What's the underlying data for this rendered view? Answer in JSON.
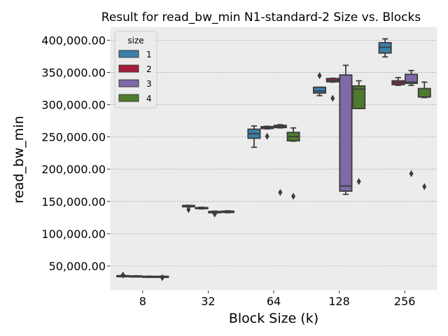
{
  "chart_data": {
    "type": "box",
    "title": "Result for read_bw_min N1-standard-2 Size vs. Blocks",
    "xlabel": "Block Size (k)",
    "ylabel": "read_bw_min",
    "categories": [
      "8",
      "32",
      "64",
      "128",
      "256"
    ],
    "yticks": [
      50000,
      100000,
      150000,
      200000,
      250000,
      300000,
      350000,
      400000
    ],
    "ytick_labels": [
      "50,000.00",
      "100,000.00",
      "150,000.00",
      "200,000.00",
      "250,000.00",
      "300,000.00",
      "350,000.00",
      "400,000.00"
    ],
    "ylim": [
      12000,
      421000
    ],
    "grid": true,
    "legend": {
      "title": "size",
      "position": "top-left"
    },
    "series": [
      {
        "name": "1",
        "color": "#3a7fa8",
        "boxes": [
          {
            "category": "8",
            "min": 33500,
            "q1": 34000,
            "median": 34500,
            "q3": 35000,
            "max": 35500,
            "outliers": [
              36000
            ]
          },
          {
            "category": "32",
            "min": 141500,
            "q1": 141800,
            "median": 142300,
            "q3": 143800,
            "max": 144000,
            "outliers": [
              137500
            ]
          },
          {
            "category": "64",
            "min": 234000,
            "q1": 248000,
            "median": 255000,
            "q3": 262000,
            "max": 267000,
            "outliers": []
          },
          {
            "category": "128",
            "min": 314000,
            "q1": 318000,
            "median": 321000,
            "q3": 327000,
            "max": 327000,
            "outliers": [
              345000
            ]
          },
          {
            "category": "256",
            "min": 374000,
            "q1": 380000,
            "median": 389000,
            "q3": 396000,
            "max": 402000,
            "outliers": []
          }
        ]
      },
      {
        "name": "2",
        "color": "#a31d3a",
        "boxes": [
          {
            "category": "8",
            "min": 33500,
            "q1": 33800,
            "median": 34200,
            "q3": 34600,
            "max": 34800,
            "outliers": []
          },
          {
            "category": "32",
            "min": 138500,
            "q1": 139000,
            "median": 139500,
            "q3": 140500,
            "max": 141000,
            "outliers": []
          },
          {
            "category": "64",
            "min": 262500,
            "q1": 263000,
            "median": 264500,
            "q3": 266000,
            "max": 266500,
            "outliers": [
              251000
            ]
          },
          {
            "category": "128",
            "min": 335000,
            "q1": 335500,
            "median": 337000,
            "q3": 340500,
            "max": 341000,
            "outliers": [
              310000
            ]
          },
          {
            "category": "256",
            "min": 330000,
            "q1": 331000,
            "median": 334000,
            "q3": 337000,
            "max": 342000,
            "outliers": []
          }
        ]
      },
      {
        "name": "3",
        "color": "#7e6aa8",
        "boxes": [
          {
            "category": "8",
            "min": 32500,
            "q1": 33000,
            "median": 33500,
            "q3": 34000,
            "max": 34200,
            "outliers": []
          },
          {
            "category": "32",
            "min": 132000,
            "q1": 132500,
            "median": 133500,
            "q3": 134500,
            "max": 135000,
            "outliers": [
              130500
            ]
          },
          {
            "category": "64",
            "min": 264000,
            "q1": 264500,
            "median": 266000,
            "q3": 268000,
            "max": 269000,
            "outliers": [
              164000
            ]
          },
          {
            "category": "128",
            "min": 161000,
            "q1": 166000,
            "median": 174000,
            "q3": 346000,
            "max": 361000,
            "outliers": []
          },
          {
            "category": "256",
            "min": 330000,
            "q1": 333000,
            "median": 335000,
            "q3": 347000,
            "max": 353000,
            "outliers": [
              193000
            ]
          }
        ]
      },
      {
        "name": "4",
        "color": "#4f7a2d",
        "boxes": [
          {
            "category": "8",
            "min": 32500,
            "q1": 33000,
            "median": 33500,
            "q3": 34000,
            "max": 34200,
            "outliers": [
              32000
            ]
          },
          {
            "category": "32",
            "min": 132500,
            "q1": 133000,
            "median": 134000,
            "q3": 135000,
            "max": 135500,
            "outliers": []
          },
          {
            "category": "64",
            "min": 243500,
            "q1": 244000,
            "median": 250500,
            "q3": 257000,
            "max": 264000,
            "outliers": [
              158000
            ]
          },
          {
            "category": "128",
            "min": 294000,
            "q1": 294000,
            "median": 324000,
            "q3": 329000,
            "max": 337000,
            "outliers": [
              181000
            ]
          },
          {
            "category": "256",
            "min": 311000,
            "q1": 312000,
            "median": 312000,
            "q3": 325000,
            "max": 335000,
            "outliers": [
              173000
            ]
          }
        ]
      }
    ]
  }
}
